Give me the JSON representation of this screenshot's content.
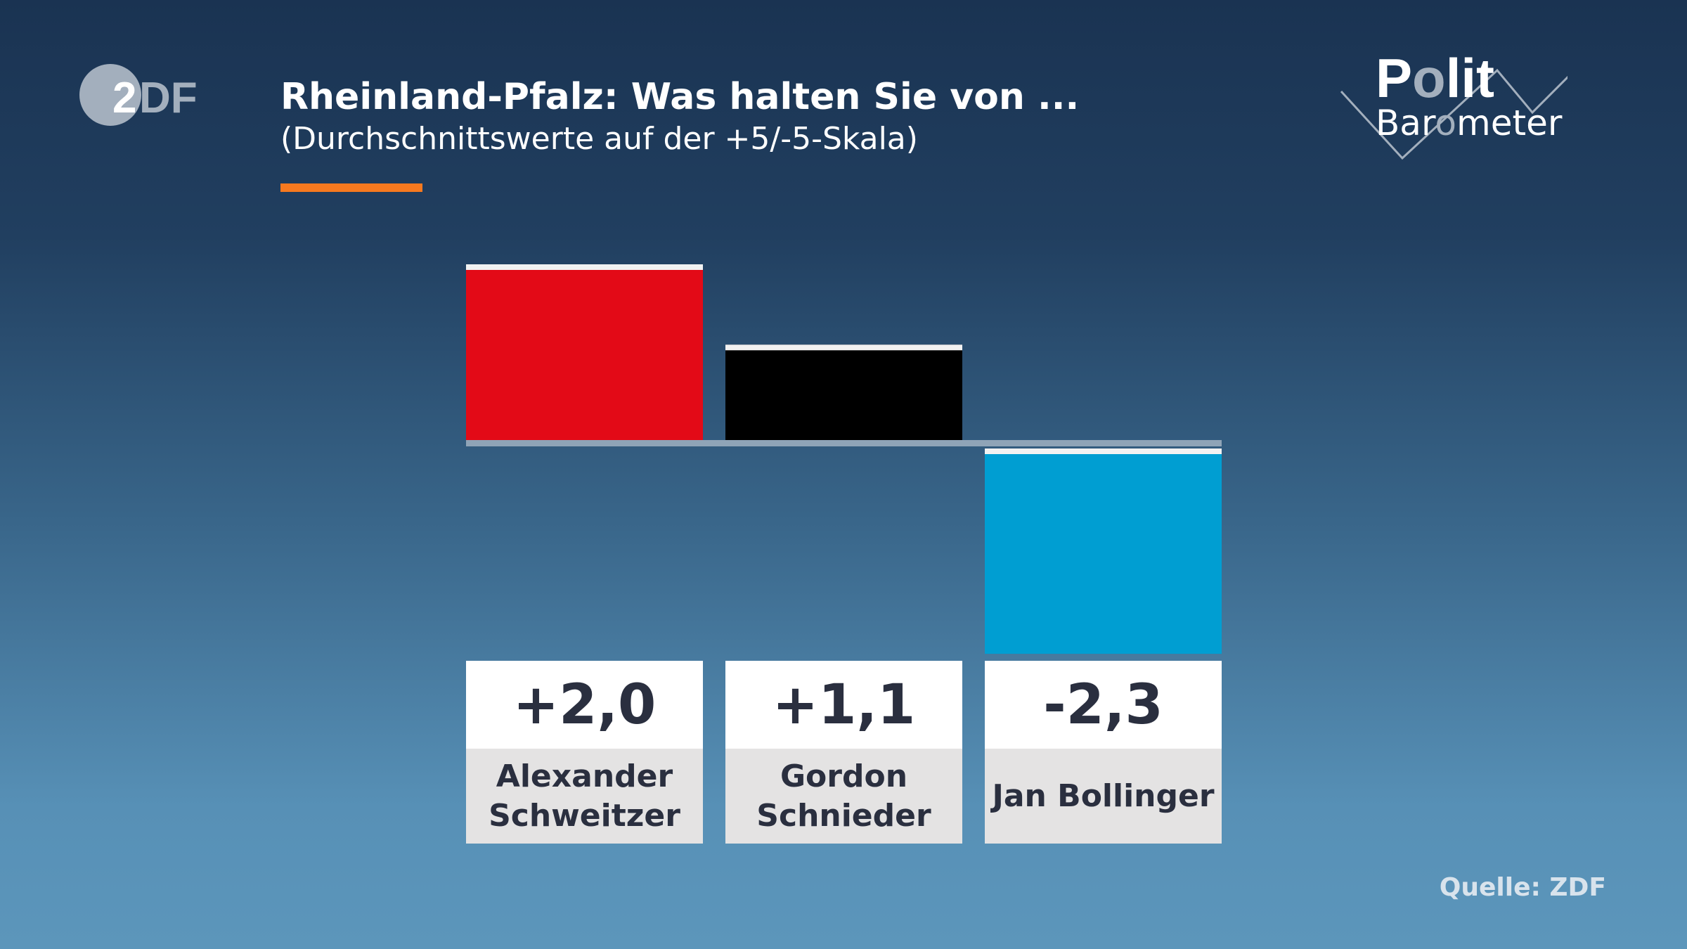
{
  "title": "Rheinland-Pfalz: Was halten Sie von ...",
  "subtitle": "(Durchschnittswerte auf der +5/-5-Skala)",
  "logos": {
    "broadcaster": "ZDF",
    "program": "Polit Barometer"
  },
  "source": "Quelle: ZDF",
  "colors": {
    "accent": "#f7791f",
    "baseline": "#8fa4b7"
  },
  "chart_data": {
    "type": "bar",
    "title": "Rheinland-Pfalz: Was halten Sie von ...",
    "subtitle": "(Durchschnittswerte auf der +5/-5-Skala)",
    "categories": [
      "Alexander\nSchweitzer",
      "Gordon\nSchnieder",
      "Jan Bollinger"
    ],
    "values": [
      2.0,
      1.1,
      -2.3
    ],
    "labels": [
      "+2,0",
      "+1,1",
      "-2,3"
    ],
    "colors": [
      "#e30a17",
      "#000000",
      "#009ed2"
    ],
    "ylim": [
      -5,
      5
    ],
    "grid": false,
    "legend": "none"
  }
}
